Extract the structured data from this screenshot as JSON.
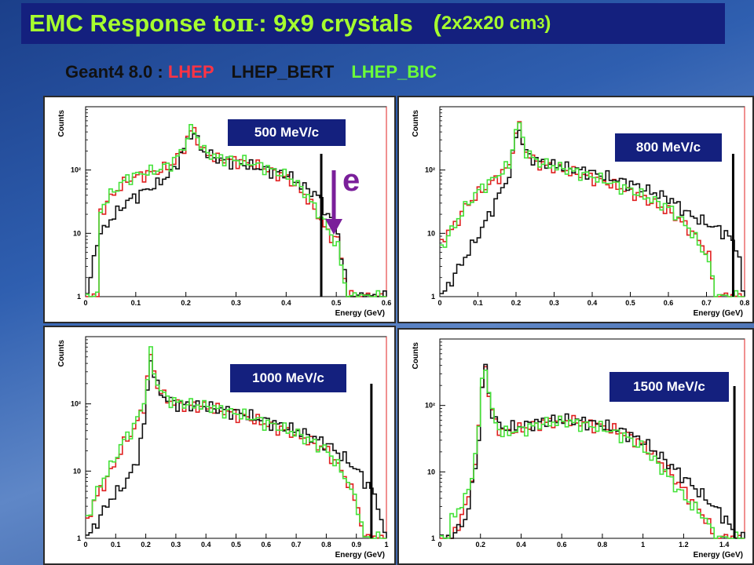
{
  "slide": {
    "title_main": "EMC Response to ",
    "title_pi": "π",
    "title_sup": "-",
    "title_rest": ": 9x9 crystals   (",
    "title_small": "2x2x20 cm",
    "title_sup3": "3",
    "title_close": ")",
    "subtitle_prefix": "Geant4 8.0 : ",
    "subtitle_models": [
      {
        "name": "LHEP",
        "color": "#ff3344"
      },
      {
        "name": "LHEP_BERT",
        "color": "#111111"
      },
      {
        "name": "LHEP_BIC",
        "color": "#6bff3a"
      }
    ],
    "annotation_e": "e"
  },
  "chart_data": [
    {
      "type": "line",
      "label": "500 MeV/c",
      "xlabel": "Energy (GeV)",
      "ylabel": "Counts",
      "xlim": [
        0,
        0.6
      ],
      "xticks": [
        "0",
        "0.1",
        "0.2",
        "0.3",
        "0.4",
        "0.5",
        "0.6"
      ],
      "yscale": "log",
      "ylim": [
        1,
        1000
      ],
      "yticks": [
        "1",
        "10",
        "10²"
      ],
      "beam_line": 0.47,
      "series": [
        {
          "name": "LHEP",
          "color": "#e02020",
          "x": [
            0.02,
            0.05,
            0.08,
            0.11,
            0.14,
            0.17,
            0.19,
            0.21,
            0.23,
            0.26,
            0.3,
            0.35,
            0.4,
            0.43,
            0.46,
            0.48,
            0.5,
            0.52
          ],
          "y": [
            18,
            40,
            70,
            85,
            95,
            125,
            200,
            480,
            200,
            150,
            140,
            110,
            75,
            45,
            20,
            10,
            8,
            1
          ]
        },
        {
          "name": "LHEP_BERT",
          "color": "#111111",
          "x": [
            0.0,
            0.02,
            0.05,
            0.08,
            0.11,
            0.14,
            0.17,
            0.19,
            0.21,
            0.23,
            0.26,
            0.3,
            0.35,
            0.4,
            0.43,
            0.46,
            0.48,
            0.5,
            0.52
          ],
          "y": [
            1,
            8,
            18,
            32,
            45,
            60,
            95,
            190,
            430,
            200,
            150,
            130,
            105,
            85,
            55,
            40,
            20,
            10,
            1
          ]
        },
        {
          "name": "LHEP_BIC",
          "color": "#45e23a",
          "x": [
            0.02,
            0.05,
            0.08,
            0.11,
            0.14,
            0.17,
            0.19,
            0.21,
            0.23,
            0.26,
            0.3,
            0.35,
            0.4,
            0.43,
            0.46,
            0.48,
            0.5,
            0.52
          ],
          "y": [
            20,
            45,
            75,
            90,
            100,
            130,
            210,
            500,
            210,
            155,
            145,
            115,
            80,
            50,
            22,
            12,
            6,
            1
          ]
        }
      ]
    },
    {
      "type": "line",
      "label": "800 MeV/c",
      "xlabel": "Energy (GeV)",
      "ylabel": "Counts",
      "xlim": [
        0,
        0.8
      ],
      "xticks": [
        "0",
        "0.1",
        "0.2",
        "0.3",
        "0.4",
        "0.5",
        "0.6",
        "0.7",
        "0.8"
      ],
      "yscale": "log",
      "ylim": [
        1,
        1000
      ],
      "yticks": [
        "1",
        "10",
        "10²"
      ],
      "beam_line": 0.77,
      "series": [
        {
          "name": "LHEP",
          "color": "#e02020",
          "x": [
            0.0,
            0.03,
            0.06,
            0.1,
            0.14,
            0.18,
            0.2,
            0.22,
            0.25,
            0.3,
            0.4,
            0.5,
            0.6,
            0.65,
            0.7,
            0.72
          ],
          "y": [
            8,
            12,
            25,
            45,
            70,
            120,
            600,
            200,
            130,
            110,
            75,
            45,
            22,
            12,
            5,
            1
          ]
        },
        {
          "name": "LHEP_BERT",
          "color": "#111111",
          "x": [
            0.0,
            0.03,
            0.06,
            0.1,
            0.14,
            0.18,
            0.2,
            0.22,
            0.25,
            0.3,
            0.4,
            0.5,
            0.6,
            0.65,
            0.7,
            0.75,
            0.79
          ],
          "y": [
            1,
            2,
            4,
            10,
            30,
            90,
            550,
            190,
            140,
            120,
            90,
            60,
            35,
            20,
            14,
            10,
            4
          ]
        },
        {
          "name": "LHEP_BIC",
          "color": "#45e23a",
          "x": [
            0.0,
            0.03,
            0.06,
            0.1,
            0.14,
            0.18,
            0.2,
            0.22,
            0.25,
            0.3,
            0.4,
            0.5,
            0.6,
            0.65,
            0.7,
            0.72
          ],
          "y": [
            6,
            12,
            25,
            50,
            75,
            125,
            650,
            210,
            135,
            115,
            78,
            48,
            25,
            12,
            4,
            1
          ]
        }
      ]
    },
    {
      "type": "line",
      "label": "1000 MeV/c",
      "xlabel": "Energy (GeV)",
      "ylabel": "Counts",
      "xlim": [
        0,
        1
      ],
      "xticks": [
        "0",
        "0.1",
        "0.2",
        "0.3",
        "0.4",
        "0.5",
        "0.6",
        "0.7",
        "0.8",
        "0.9",
        "1"
      ],
      "yscale": "log",
      "ylim": [
        1,
        1000
      ],
      "yticks": [
        "1",
        "10",
        "10²"
      ],
      "beam_line": 0.95,
      "series": [
        {
          "name": "LHEP",
          "color": "#e02020",
          "x": [
            0.0,
            0.04,
            0.08,
            0.12,
            0.16,
            0.19,
            0.21,
            0.23,
            0.26,
            0.3,
            0.4,
            0.5,
            0.6,
            0.7,
            0.8,
            0.86,
            0.9,
            0.92
          ],
          "y": [
            2,
            5,
            10,
            25,
            45,
            100,
            550,
            200,
            120,
            100,
            90,
            70,
            50,
            35,
            20,
            8,
            3,
            1
          ]
        },
        {
          "name": "LHEP_BERT",
          "color": "#111111",
          "x": [
            0.0,
            0.04,
            0.08,
            0.12,
            0.16,
            0.19,
            0.21,
            0.23,
            0.26,
            0.3,
            0.4,
            0.5,
            0.6,
            0.7,
            0.8,
            0.86,
            0.9,
            0.95,
            0.98
          ],
          "y": [
            1,
            2,
            4,
            6,
            12,
            50,
            500,
            190,
            120,
            100,
            90,
            75,
            55,
            40,
            25,
            15,
            10,
            5,
            2
          ]
        },
        {
          "name": "LHEP_BIC",
          "color": "#45e23a",
          "x": [
            0.0,
            0.04,
            0.08,
            0.12,
            0.16,
            0.19,
            0.21,
            0.23,
            0.26,
            0.3,
            0.4,
            0.5,
            0.6,
            0.7,
            0.8,
            0.86,
            0.9,
            0.92
          ],
          "y": [
            2,
            6,
            12,
            28,
            50,
            110,
            600,
            210,
            125,
            105,
            92,
            72,
            52,
            36,
            20,
            8,
            3,
            1
          ]
        }
      ]
    },
    {
      "type": "line",
      "label": "1500 MeV/c",
      "xlabel": "Energy (GeV)",
      "ylabel": "Counts",
      "xlim": [
        0,
        1.5
      ],
      "xticks": [
        "0",
        "0.2",
        "0.4",
        "0.6",
        "0.8",
        "1",
        "1.2",
        "1.4"
      ],
      "yscale": "log",
      "ylim": [
        1,
        1000
      ],
      "yticks": [
        "1",
        "10",
        "10²"
      ],
      "beam_line": 1.45,
      "series": [
        {
          "name": "LHEP",
          "color": "#e02020",
          "x": [
            0.05,
            0.12,
            0.16,
            0.19,
            0.21,
            0.23,
            0.26,
            0.3,
            0.4,
            0.5,
            0.6,
            0.7,
            0.8,
            0.9,
            1.0,
            1.1,
            1.2,
            1.3,
            1.35
          ],
          "y": [
            1,
            3,
            10,
            60,
            700,
            150,
            60,
            40,
            45,
            55,
            60,
            55,
            48,
            38,
            25,
            12,
            5,
            2,
            1
          ]
        },
        {
          "name": "LHEP_BERT",
          "color": "#111111",
          "x": [
            0.05,
            0.12,
            0.16,
            0.19,
            0.21,
            0.23,
            0.26,
            0.3,
            0.4,
            0.5,
            0.6,
            0.7,
            0.8,
            0.9,
            1.0,
            1.1,
            1.2,
            1.3,
            1.4,
            1.45
          ],
          "y": [
            1,
            2,
            8,
            50,
            650,
            150,
            65,
            45,
            50,
            58,
            62,
            58,
            50,
            40,
            28,
            15,
            8,
            4,
            2,
            1
          ]
        },
        {
          "name": "LHEP_BIC",
          "color": "#45e23a",
          "x": [
            0.05,
            0.12,
            0.16,
            0.19,
            0.21,
            0.23,
            0.26,
            0.3,
            0.4,
            0.5,
            0.6,
            0.7,
            0.8,
            0.9,
            1.0,
            1.1,
            1.2,
            1.3,
            1.35
          ],
          "y": [
            2,
            4,
            12,
            70,
            750,
            160,
            60,
            38,
            44,
            54,
            58,
            52,
            45,
            35,
            22,
            10,
            4,
            2,
            1
          ]
        }
      ]
    }
  ]
}
